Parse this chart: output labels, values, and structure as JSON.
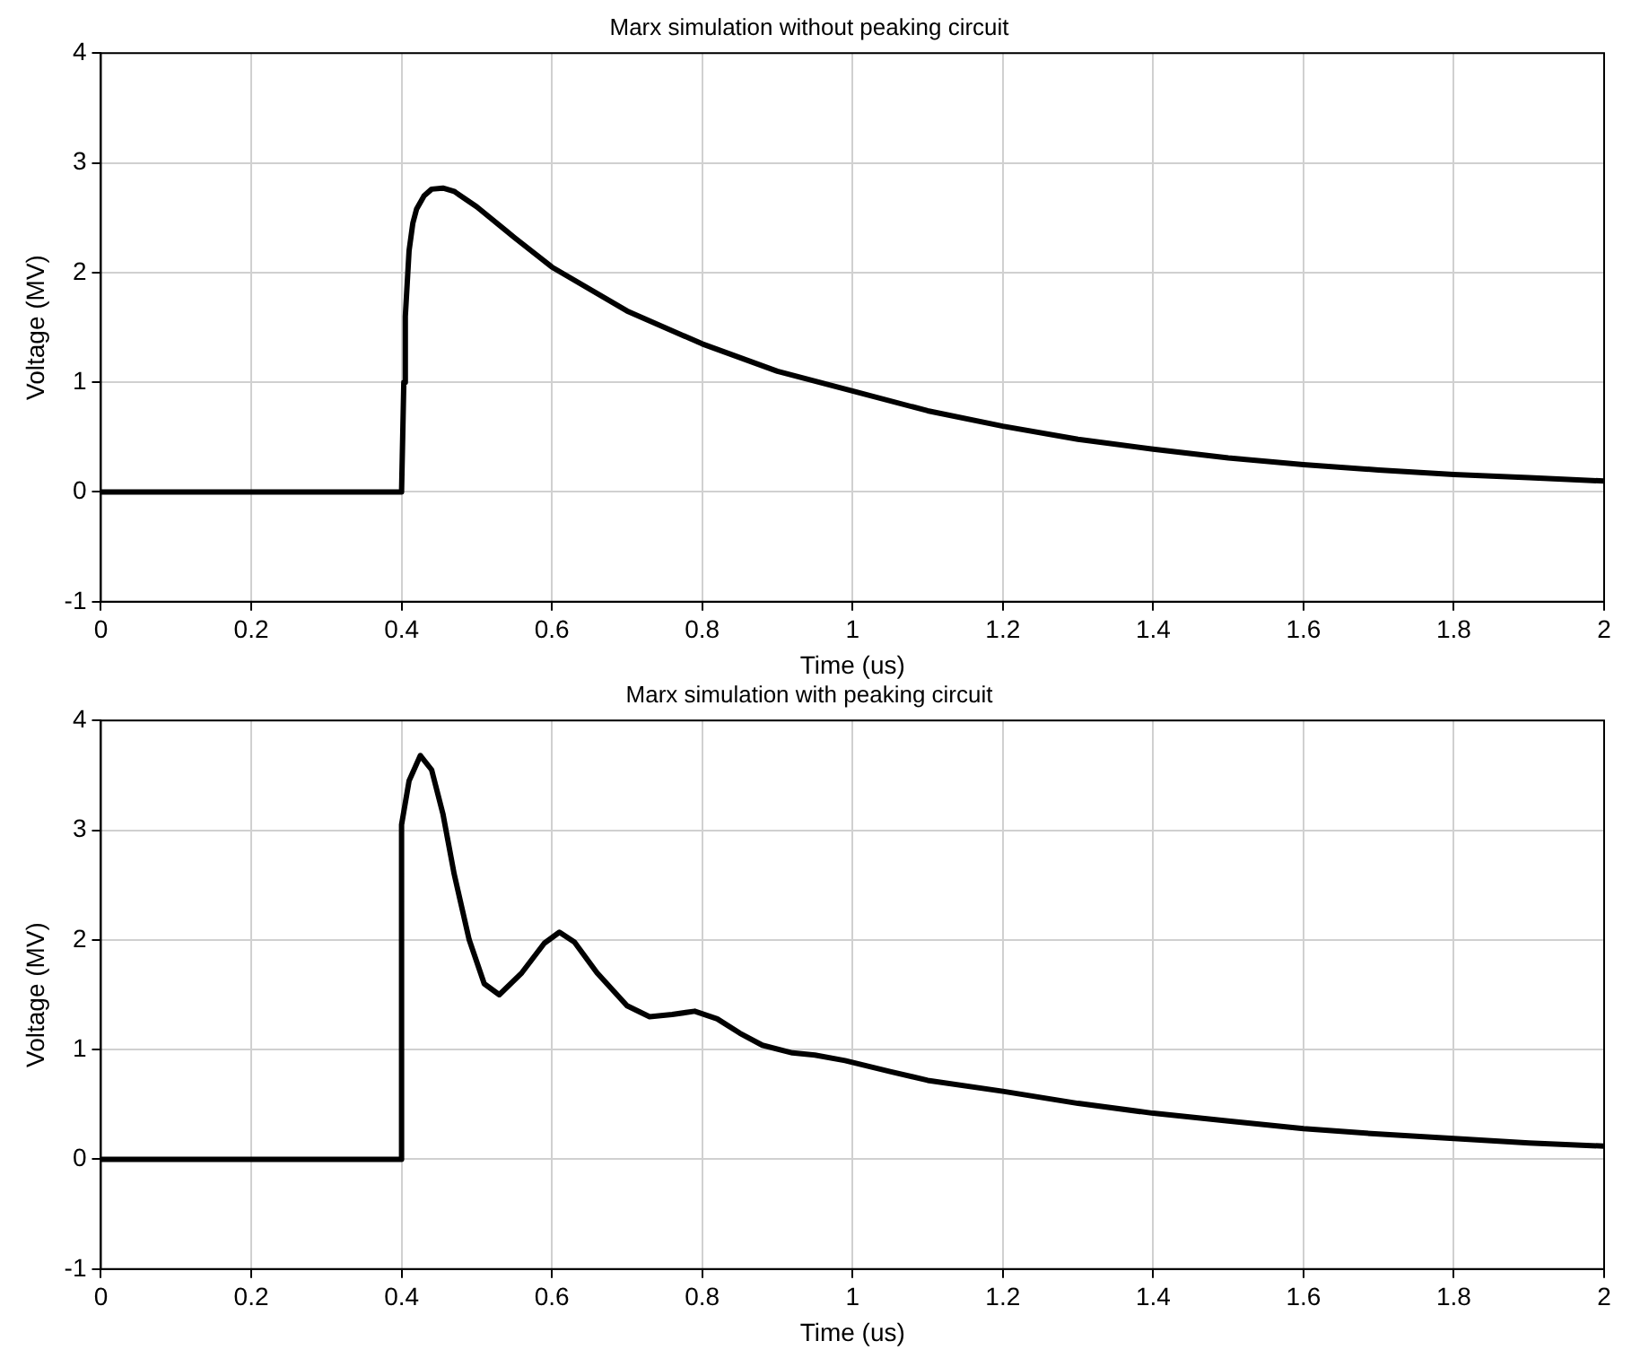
{
  "chart_data": [
    {
      "type": "line",
      "title": "Marx simulation without peaking circuit",
      "xlabel": "Time (us)",
      "ylabel": "Voltage (MV)",
      "xlim": [
        0,
        2
      ],
      "xticks": [
        0,
        0.2,
        0.4,
        0.6,
        0.8,
        1,
        1.2,
        1.4,
        1.6,
        1.8,
        2
      ],
      "ylim": [
        -1,
        4
      ],
      "yticks": [
        -1,
        0,
        1,
        2,
        3,
        4
      ],
      "grid": true,
      "legend": false,
      "marker": "none",
      "line_style": "solid",
      "series": [
        {
          "color": "#000000",
          "x": [
            0,
            0.4,
            0.403,
            0.405,
            0.41,
            0.415,
            0.42,
            0.43,
            0.44,
            0.455,
            0.47,
            0.5,
            0.55,
            0.6,
            0.7,
            0.8,
            0.9,
            1,
            1.1,
            1.2,
            1.3,
            1.4,
            1.5,
            1.6,
            1.7,
            1.8,
            1.9,
            2
          ],
          "values": [
            0,
            0,
            1,
            1.6,
            2.2,
            2.45,
            2.58,
            2.7,
            2.76,
            2.77,
            2.74,
            2.6,
            2.32,
            2.05,
            1.65,
            1.35,
            1.1,
            0.92,
            0.74,
            0.6,
            0.48,
            0.39,
            0.31,
            0.25,
            0.2,
            0.16,
            0.13,
            0.1
          ]
        }
      ]
    },
    {
      "type": "line",
      "title": "Marx simulation with peaking circuit",
      "xlabel": "Time (us)",
      "ylabel": "Voltage (MV)",
      "xlim": [
        0,
        2
      ],
      "xticks": [
        0,
        0.2,
        0.4,
        0.6,
        0.8,
        1,
        1.2,
        1.4,
        1.6,
        1.8,
        2
      ],
      "ylim": [
        -1,
        4
      ],
      "yticks": [
        -1,
        0,
        1,
        2,
        3,
        4
      ],
      "grid": true,
      "legend": false,
      "marker": "none",
      "line_style": "solid",
      "series": [
        {
          "color": "#000000",
          "x": [
            0,
            0.4,
            0.4,
            0.41,
            0.425,
            0.44,
            0.455,
            0.47,
            0.49,
            0.51,
            0.53,
            0.56,
            0.59,
            0.61,
            0.63,
            0.66,
            0.7,
            0.73,
            0.76,
            0.79,
            0.82,
            0.85,
            0.88,
            0.92,
            0.95,
            0.99,
            1.05,
            1.1,
            1.2,
            1.3,
            1.4,
            1.5,
            1.6,
            1.7,
            1.8,
            1.9,
            2
          ],
          "values": [
            0,
            0,
            3.05,
            3.45,
            3.68,
            3.55,
            3.15,
            2.6,
            2,
            1.6,
            1.5,
            1.7,
            1.97,
            2.07,
            1.98,
            1.7,
            1.4,
            1.3,
            1.32,
            1.35,
            1.28,
            1.15,
            1.04,
            0.97,
            0.95,
            0.9,
            0.8,
            0.72,
            0.62,
            0.51,
            0.42,
            0.35,
            0.28,
            0.23,
            0.19,
            0.15,
            0.12
          ]
        }
      ]
    }
  ]
}
